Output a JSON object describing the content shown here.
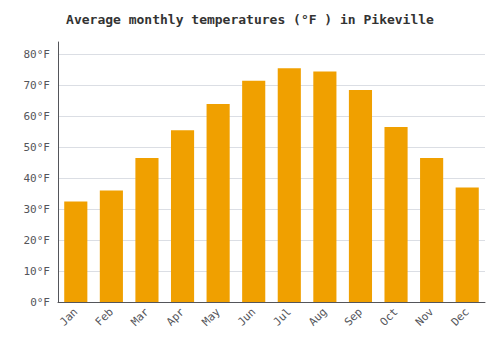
{
  "chart_data": {
    "type": "bar",
    "title": "Average monthly temperatures (°F ) in Pikeville",
    "categories": [
      "Jan",
      "Feb",
      "Mar",
      "Apr",
      "May",
      "Jun",
      "Jul",
      "Aug",
      "Sep",
      "Oct",
      "Nov",
      "Dec"
    ],
    "values": [
      32.5,
      36.0,
      46.5,
      55.5,
      64.0,
      71.5,
      75.5,
      74.5,
      68.5,
      56.5,
      46.5,
      37.0
    ],
    "color": "#F0A000",
    "ylim": [
      0,
      84
    ],
    "yticks": [
      {
        "value": 0,
        "label": "0°F"
      },
      {
        "value": 10,
        "label": "10°F"
      },
      {
        "value": 20,
        "label": "20°F"
      },
      {
        "value": 30,
        "label": "30°F"
      },
      {
        "value": 40,
        "label": "40°F"
      },
      {
        "value": 50,
        "label": "50°F"
      },
      {
        "value": 60,
        "label": "60°F"
      },
      {
        "value": 70,
        "label": "70°F"
      },
      {
        "value": 80,
        "label": "80°F"
      }
    ],
    "grid": true
  }
}
